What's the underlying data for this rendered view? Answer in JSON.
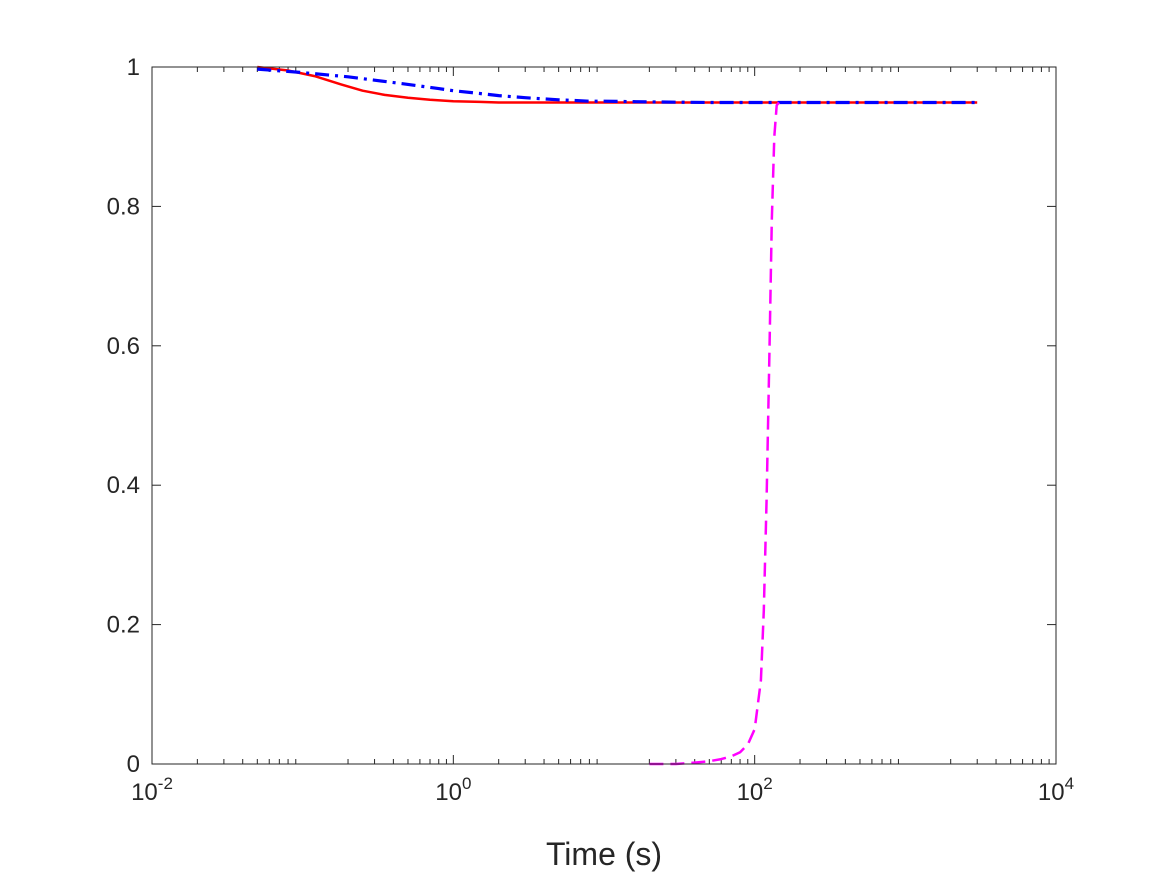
{
  "chart_data": {
    "type": "line",
    "title": "",
    "xlabel": "Time (s)",
    "ylabel": "",
    "xscale": "log",
    "xlim": [
      0.01,
      10000
    ],
    "ylim": [
      0,
      1
    ],
    "xticks": [
      {
        "value": 0.01,
        "base": "10",
        "exp": "-2"
      },
      {
        "value": 1,
        "base": "10",
        "exp": "0"
      },
      {
        "value": 100,
        "base": "10",
        "exp": "2"
      },
      {
        "value": 10000,
        "base": "10",
        "exp": "4"
      }
    ],
    "yticks": [
      {
        "value": 0,
        "label": "0"
      },
      {
        "value": 0.2,
        "label": "0.2"
      },
      {
        "value": 0.4,
        "label": "0.4"
      },
      {
        "value": 0.6,
        "label": "0.6"
      },
      {
        "value": 0.8,
        "label": "0.8"
      },
      {
        "value": 1,
        "label": "1"
      }
    ],
    "grid": false,
    "legend": "none",
    "series": [
      {
        "color": "#ff0000",
        "style": "solid",
        "x": [
          0.05,
          0.08,
          0.12,
          0.18,
          0.25,
          0.35,
          0.5,
          0.7,
          1,
          1.5,
          2,
          3,
          5,
          10,
          20,
          50,
          100,
          200,
          500,
          1000,
          3000
        ],
        "y": [
          1.0,
          0.995,
          0.987,
          0.975,
          0.966,
          0.96,
          0.956,
          0.953,
          0.951,
          0.95,
          0.949,
          0.949,
          0.949,
          0.949,
          0.949,
          0.949,
          0.949,
          0.949,
          0.949,
          0.949,
          0.949
        ]
      },
      {
        "color": "#0000ff",
        "style": "dashdot",
        "x": [
          0.05,
          0.1,
          0.2,
          0.3,
          0.5,
          0.8,
          1,
          1.5,
          2,
          3,
          5,
          8,
          10,
          20,
          50,
          100,
          200,
          500,
          1000,
          3000
        ],
        "y": [
          0.997,
          0.992,
          0.986,
          0.981,
          0.975,
          0.969,
          0.966,
          0.962,
          0.959,
          0.956,
          0.953,
          0.951,
          0.951,
          0.95,
          0.949,
          0.949,
          0.949,
          0.949,
          0.949,
          0.949
        ]
      },
      {
        "color": "#ff00ff",
        "style": "dashed",
        "x": [
          20,
          30,
          40,
          50,
          60,
          70,
          80,
          90,
          100,
          110,
          115,
          120,
          125,
          130,
          135,
          140,
          145
        ],
        "y": [
          0.0,
          0.0,
          0.002,
          0.004,
          0.007,
          0.011,
          0.017,
          0.028,
          0.05,
          0.12,
          0.22,
          0.38,
          0.58,
          0.78,
          0.9,
          0.945,
          0.949
        ]
      }
    ]
  }
}
